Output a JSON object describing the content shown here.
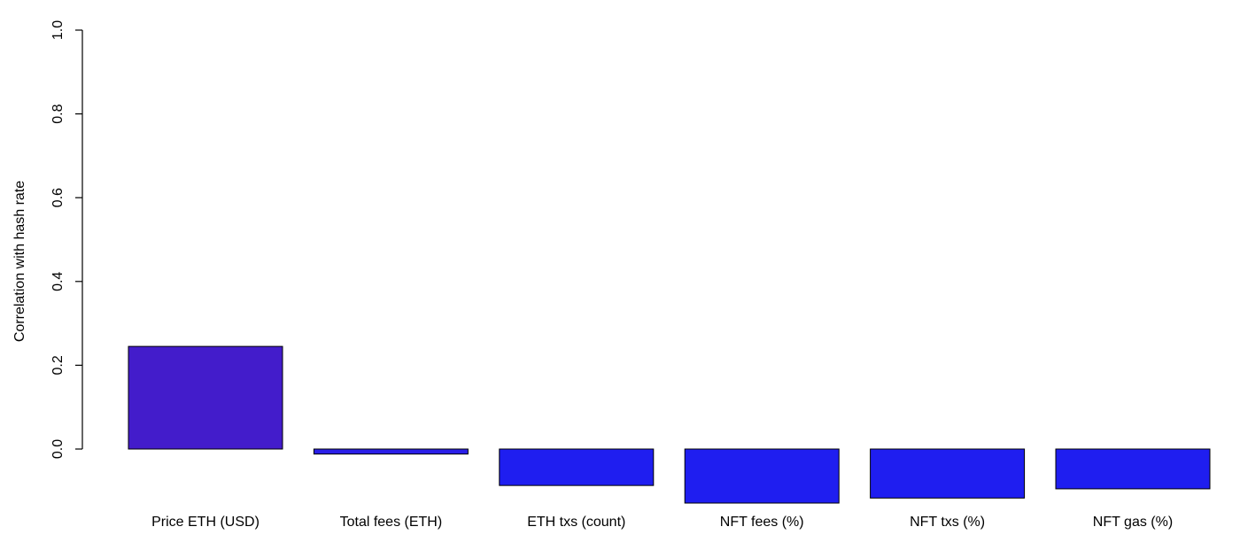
{
  "chart_data": {
    "type": "bar",
    "ylabel": "Correlation with hash rate",
    "ylim": [
      -0.13,
      1.0
    ],
    "yticks": [
      "0.0",
      "0.2",
      "0.4",
      "0.6",
      "0.8",
      "1.0"
    ],
    "grid": false,
    "categories": [
      "Price ETH (USD)",
      "Total fees (ETH)",
      "ETH txs (count)",
      "NFT fees (%)",
      "NFT txs (%)",
      "NFT gas (%)"
    ],
    "values": [
      0.245,
      -0.012,
      -0.087,
      -0.129,
      -0.117,
      -0.095
    ],
    "colors": [
      "#431ccb",
      "#2a1ee8",
      "#1f1ef0",
      "#1f1ef0",
      "#1f1ef0",
      "#1f1ef0"
    ]
  }
}
